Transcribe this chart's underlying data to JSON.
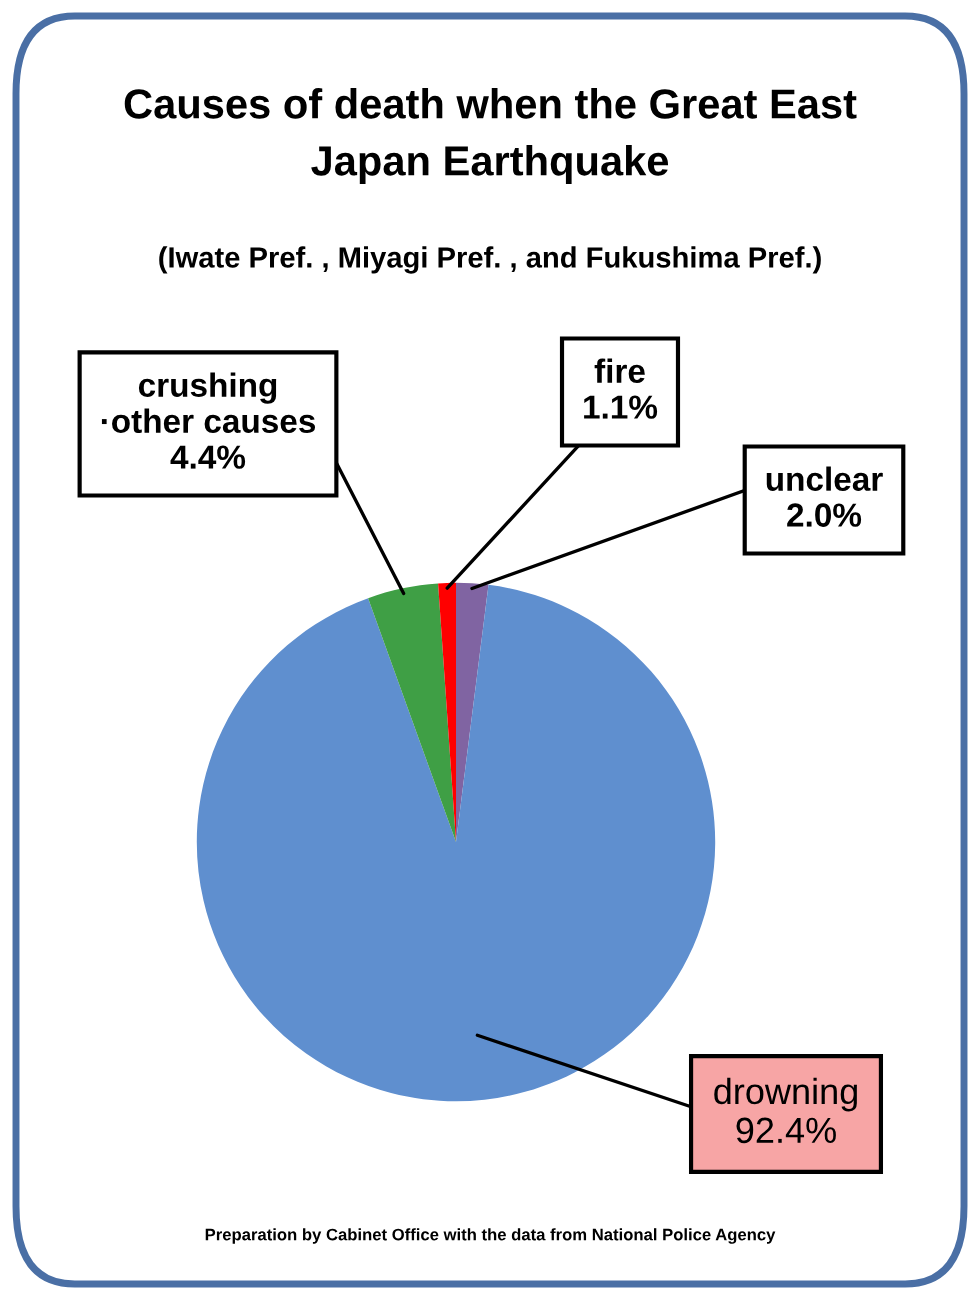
{
  "chart_data": {
    "type": "pie",
    "title": "Causes of death when the Great East\nJapan Earthquake",
    "subtitle": "(Iwate Pref. , Miyagi Pref. , and Fukushima Pref.)",
    "categories": [
      "unclear",
      "drowning",
      "crushing\n·other causes",
      "fire"
    ],
    "values": [
      2.0,
      92.4,
      4.4,
      1.1
    ],
    "value_labels": [
      "2.0%",
      "92.4%",
      "4.4%",
      "1.1%"
    ],
    "colors": [
      "#8064a2",
      "#5f8fcf",
      "#3f9f45",
      "#ff0000"
    ],
    "annotations": [
      "Preparation by Cabinet Office with the data from National Police Agency"
    ]
  }
}
